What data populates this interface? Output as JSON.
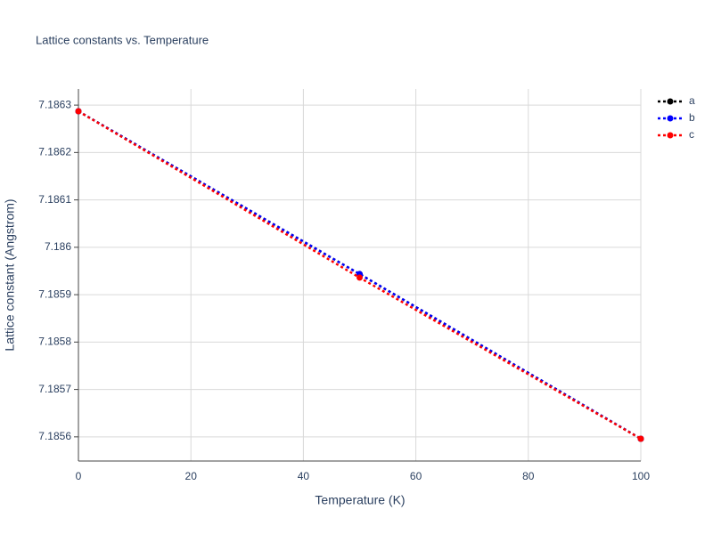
{
  "chart_data": {
    "type": "line",
    "title": "Lattice constants vs. Temperature",
    "x_label": "Temperature (K)",
    "y_label": "Lattice constant (Angstrom)",
    "x": [
      0,
      50,
      100
    ],
    "series": [
      {
        "name": "a",
        "color": "#000000",
        "values": [
          7.186287,
          7.1859435,
          7.185596
        ]
      },
      {
        "name": "b",
        "color": "#0000ff",
        "values": [
          7.186287,
          7.1859435,
          7.185596
        ]
      },
      {
        "name": "c",
        "color": "#ff0000",
        "values": [
          7.186287,
          7.185936,
          7.185596
        ]
      }
    ],
    "xlim": [
      0,
      100
    ],
    "xticks": [
      0,
      20,
      40,
      60,
      80,
      100
    ],
    "ylim": [
      7.185549,
      7.186334
    ],
    "yticks": [
      7.1856,
      7.1857,
      7.1858,
      7.1859,
      7.186,
      7.1861,
      7.1862,
      7.1863
    ],
    "grid": true,
    "legend": "top-right",
    "line_style": "dotted"
  }
}
